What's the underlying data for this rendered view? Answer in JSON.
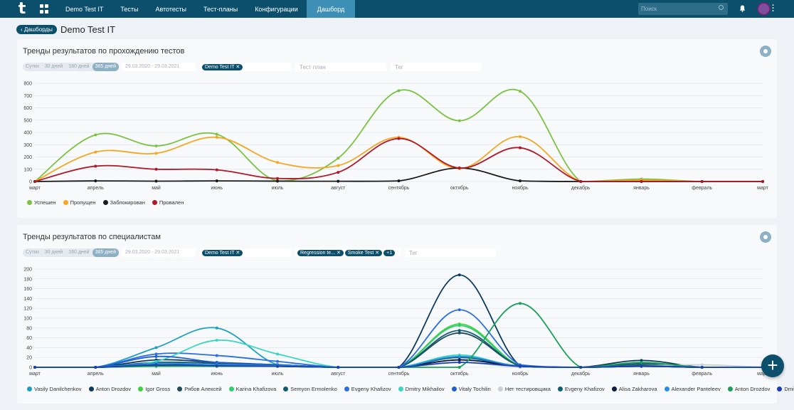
{
  "nav": {
    "logo": "t",
    "items": [
      "Demo Test IT",
      "Тесты",
      "Автотесты",
      "Тест-планы",
      "Конфигурации",
      "Дашборд"
    ],
    "active_index": 5,
    "search_placeholder": "Поиск"
  },
  "header": {
    "back_label": "‹ Дашборды",
    "title": "Demo Test IT"
  },
  "widget1": {
    "title": "Тренды результатов по прохождению тестов",
    "periods": [
      "Сутки",
      "30 дней",
      "180 дней",
      "365 дней"
    ],
    "period_selected": 3,
    "date_range": "29.03.2020 - 29.03.2021",
    "project_chip": "Demo Test IT ✕",
    "testplan_placeholder": "Тест план",
    "tag_placeholder": "Тег"
  },
  "widget2": {
    "title": "Тренды результатов по специалистам",
    "periods": [
      "Сутки",
      "30 дней",
      "180 дней",
      "365 дней"
    ],
    "period_selected": 3,
    "date_range": "29.03.2020 - 29.03.2021",
    "project_chip": "Demo Test IT ✕",
    "testplan_chips": [
      "Regression te... ✕",
      "Smoke Test ✕",
      "+1"
    ],
    "tag_placeholder": "Тег"
  },
  "chart_data": [
    {
      "type": "line",
      "categories": [
        "март",
        "апрель",
        "май",
        "июнь",
        "июль",
        "август",
        "сентябрь",
        "октябрь",
        "ноябрь",
        "декабрь",
        "январь",
        "февраль",
        "март"
      ],
      "ylim": [
        0,
        800
      ],
      "yticks": [
        0,
        100,
        200,
        300,
        400,
        500,
        600,
        700,
        800
      ],
      "grid": true,
      "legend_position": "bottom-left",
      "series": [
        {
          "name": "Успешен",
          "color": "#7cc242",
          "values": [
            0,
            380,
            290,
            385,
            5,
            190,
            740,
            495,
            735,
            0,
            20,
            0,
            0
          ]
        },
        {
          "name": "Пропущен",
          "color": "#f5a623",
          "values": [
            0,
            240,
            230,
            360,
            155,
            130,
            360,
            105,
            365,
            0,
            10,
            0,
            0
          ]
        },
        {
          "name": "Заблокирован",
          "color": "#1a1a1a",
          "values": [
            0,
            5,
            3,
            5,
            3,
            2,
            5,
            110,
            5,
            0,
            0,
            0,
            0
          ]
        },
        {
          "name": "Провален",
          "color": "#b0182a",
          "values": [
            0,
            125,
            100,
            95,
            25,
            75,
            350,
            110,
            275,
            0,
            0,
            0,
            0
          ]
        }
      ]
    },
    {
      "type": "line",
      "categories": [
        "март",
        "апрель",
        "май",
        "июнь",
        "июль",
        "август",
        "сентябрь",
        "октябрь",
        "ноябрь",
        "декабрь",
        "январь",
        "февраль",
        "март"
      ],
      "ylim": [
        0,
        200
      ],
      "yticks": [
        0,
        20,
        40,
        60,
        80,
        100,
        120,
        140,
        160,
        180,
        200
      ],
      "grid": true,
      "legend_position": "bottom-left",
      "series": [
        {
          "name": "Vasily Danilchenkov",
          "color": "#1f9fc2",
          "values": [
            0,
            0,
            40,
            80,
            5,
            0,
            0,
            20,
            0,
            0,
            5,
            0,
            0
          ]
        },
        {
          "name": "Anton Drozdov",
          "color": "#0d3a5c",
          "values": [
            0,
            0,
            15,
            10,
            5,
            0,
            0,
            188,
            3,
            0,
            14,
            0,
            0
          ]
        },
        {
          "name": "Igor Gross",
          "color": "#3ed13e",
          "values": [
            0,
            0,
            5,
            5,
            3,
            0,
            0,
            88,
            3,
            0,
            3,
            0,
            0
          ]
        },
        {
          "name": "Рябов Алексей",
          "color": "#1f4d5a",
          "values": [
            0,
            0,
            5,
            3,
            3,
            0,
            0,
            70,
            3,
            0,
            5,
            0,
            0
          ]
        },
        {
          "name": "Karina Khafizova",
          "color": "#2fcf6f",
          "values": [
            0,
            0,
            3,
            3,
            2,
            0,
            0,
            85,
            2,
            0,
            3,
            0,
            0
          ]
        },
        {
          "name": "Semyon Ermolenko",
          "color": "#145a72",
          "values": [
            0,
            0,
            10,
            8,
            5,
            0,
            0,
            75,
            3,
            0,
            8,
            0,
            0
          ]
        },
        {
          "name": "Evgeny Khafizov",
          "color": "#2a6ee0",
          "values": [
            0,
            0,
            27,
            24,
            12,
            0,
            0,
            117,
            5,
            0,
            3,
            0,
            0
          ]
        },
        {
          "name": "Dmitry Mikhailov",
          "color": "#3ad6c2",
          "values": [
            0,
            0,
            12,
            55,
            27,
            0,
            0,
            25,
            0,
            0,
            3,
            0,
            0
          ]
        },
        {
          "name": "Vitaly Tochilin",
          "color": "#1f5fd0",
          "values": [
            0,
            0,
            22,
            10,
            5,
            0,
            0,
            15,
            3,
            0,
            2,
            0,
            0
          ]
        },
        {
          "name": "Нет тестировщика",
          "color": "#c8cfd6",
          "values": [
            0,
            0,
            3,
            3,
            2,
            0,
            0,
            10,
            0,
            0,
            3,
            5,
            0
          ]
        },
        {
          "name": "Evgeny Khafizov",
          "color": "#0f5f6e",
          "values": [
            0,
            0,
            5,
            5,
            3,
            0,
            0,
            20,
            2,
            0,
            3,
            0,
            0
          ]
        },
        {
          "name": "Alisa Zakharova",
          "color": "#0a1a40",
          "values": [
            0,
            0,
            3,
            2,
            2,
            0,
            0,
            15,
            2,
            0,
            2,
            0,
            0
          ]
        },
        {
          "name": "Alexander Panteleev",
          "color": "#2a8fe0",
          "values": [
            0,
            0,
            8,
            5,
            3,
            0,
            0,
            22,
            2,
            0,
            2,
            0,
            0
          ]
        },
        {
          "name": "Anton Drozdov",
          "color": "#1aa05a",
          "values": [
            0,
            0,
            2,
            2,
            2,
            0,
            0,
            0,
            130,
            0,
            10,
            0,
            0
          ]
        },
        {
          "name": "Dmitry Mikhailov",
          "color": "#1c3fb0",
          "values": [
            0,
            0,
            5,
            3,
            2,
            0,
            0,
            10,
            2,
            0,
            2,
            0,
            0
          ]
        }
      ]
    }
  ],
  "fab_label": "+"
}
